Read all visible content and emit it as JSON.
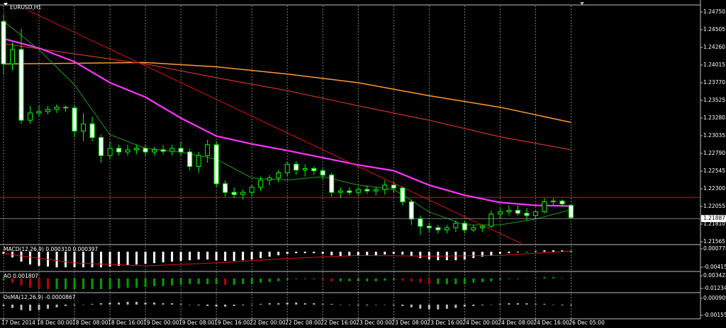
{
  "chart_data": [
    {
      "type": "candlestick",
      "title": "EURUSD,H1",
      "xlim": [
        -0.4,
        78.6
      ],
      "xticks": [
        {
          "value": 0,
          "label": "17 Dec 2014"
        },
        {
          "value": 4,
          "label": "18 Dec 00:00"
        },
        {
          "value": 8,
          "label": "18 Dec 08:00"
        },
        {
          "value": 12,
          "label": "18 Dec 16:00"
        },
        {
          "value": 16,
          "label": "19 Dec 00:00"
        },
        {
          "value": 20,
          "label": "19 Dec 08:00"
        },
        {
          "value": 24,
          "label": "19 Dec 16:00"
        },
        {
          "value": 28,
          "label": "22 Dec 00:00"
        },
        {
          "value": 32,
          "label": "22 Dec 08:00"
        },
        {
          "value": 36,
          "label": "22 Dec 16:00"
        },
        {
          "value": 40,
          "label": "23 Dec 00:00"
        },
        {
          "value": 44,
          "label": "23 Dec 08:00"
        },
        {
          "value": 48,
          "label": "23 Dec 16:00"
        },
        {
          "value": 52,
          "label": "24 Dec 00:00"
        },
        {
          "value": 56,
          "label": "24 Dec 08:00"
        },
        {
          "value": 60,
          "label": "24 Dec 16:00"
        },
        {
          "value": 64,
          "label": "26 Dec 05:00"
        }
      ],
      "grid": true,
      "ylim": [
        1.21536,
        1.24838
      ],
      "yticks": [
        {
          "value": 1.2475,
          "label": "1.24750"
        },
        1.24505,
        {
          "value": 1.2426,
          "label": "1.24260"
        },
        1.24015,
        {
          "value": 1.2377,
          "label": "1.23770"
        },
        1.23525,
        {
          "value": 1.2328,
          "label": "1.23280"
        },
        1.23035,
        {
          "value": 1.2279,
          "label": "1.22790"
        },
        1.22545,
        {
          "value": 1.223,
          "label": "1.22300"
        },
        1.22055,
        {
          "value": 1.2181,
          "label": "1.21810"
        },
        1.21565
      ],
      "open": [
        1.2462,
        1.2403,
        1.2423,
        1.2325,
        1.2335,
        1.2337,
        1.234,
        1.2343,
        1.2342,
        1.231,
        1.232,
        1.2301,
        1.2276,
        1.2286,
        1.2281,
        1.2284,
        1.2286,
        1.2281,
        1.2284,
        1.2282,
        1.2286,
        1.2281,
        1.2261,
        1.2276,
        1.2291,
        1.2237,
        1.2225,
        1.2222,
        1.2225,
        1.2232,
        1.2242,
        1.2245,
        1.2252,
        1.2264,
        1.2256,
        1.2258,
        1.2255,
        1.2249,
        1.2225,
        1.2227,
        1.2225,
        1.2229,
        1.2227,
        1.2229,
        1.2235,
        1.2231,
        1.2212,
        1.2188,
        1.2178,
        1.2176,
        1.2173,
        1.2176,
        1.2182,
        1.2173,
        1.2176,
        1.2178,
        1.2195,
        1.2198,
        1.22,
        1.2196,
        1.2193,
        1.2198,
        1.2212,
        1.2213,
        1.2207
      ],
      "high": [
        1.2472,
        1.2433,
        1.2452,
        1.2345,
        1.2345,
        1.2345,
        1.2347,
        1.2345,
        1.2345,
        1.2335,
        1.233,
        1.2305,
        1.2296,
        1.2291,
        1.2291,
        1.2291,
        1.2291,
        1.2288,
        1.2291,
        1.2291,
        1.2296,
        1.2286,
        1.2281,
        1.2298,
        1.2296,
        1.2242,
        1.2232,
        1.2229,
        1.2235,
        1.2247,
        1.2249,
        1.2256,
        1.2268,
        1.2268,
        1.2264,
        1.2261,
        1.2258,
        1.2252,
        1.2232,
        1.2232,
        1.2232,
        1.2235,
        1.2233,
        1.2242,
        1.2239,
        1.2233,
        1.2215,
        1.2193,
        1.2183,
        1.218,
        1.218,
        1.2186,
        1.2186,
        1.218,
        1.218,
        1.22,
        1.2203,
        1.2207,
        1.2207,
        1.2203,
        1.22,
        1.2217,
        1.2217,
        1.2215,
        1.2209
      ],
      "low": [
        1.2389,
        1.2394,
        1.232,
        1.232,
        1.233,
        1.2333,
        1.2335,
        1.2337,
        1.2301,
        1.2296,
        1.2296,
        1.2266,
        1.2271,
        1.2276,
        1.2276,
        1.2278,
        1.2276,
        1.2276,
        1.2278,
        1.2276,
        1.2276,
        1.2256,
        1.2252,
        1.2266,
        1.2232,
        1.2219,
        1.2217,
        1.2215,
        1.2219,
        1.2227,
        1.2235,
        1.2239,
        1.2247,
        1.2249,
        1.2247,
        1.2249,
        1.2242,
        1.2219,
        1.2217,
        1.2221,
        1.2221,
        1.2223,
        1.2221,
        1.2222,
        1.2225,
        1.2207,
        1.218,
        1.2166,
        1.217,
        1.2168,
        1.2168,
        1.217,
        1.2168,
        1.217,
        1.217,
        1.2176,
        1.2188,
        1.2193,
        1.2193,
        1.2186,
        1.2188,
        1.2196,
        1.2207,
        1.2205,
        1.2188
      ],
      "close": [
        1.2403,
        1.2423,
        1.2325,
        1.2335,
        1.2337,
        1.234,
        1.2343,
        1.2342,
        1.231,
        1.232,
        1.2301,
        1.2276,
        1.2286,
        1.2281,
        1.2284,
        1.2286,
        1.2281,
        1.2284,
        1.2282,
        1.2286,
        1.2281,
        1.2261,
        1.2276,
        1.2291,
        1.2237,
        1.2225,
        1.2222,
        1.2225,
        1.2232,
        1.2242,
        1.2245,
        1.2252,
        1.2264,
        1.2256,
        1.2258,
        1.2255,
        1.2249,
        1.2225,
        1.2227,
        1.2225,
        1.2229,
        1.2227,
        1.2229,
        1.2235,
        1.2231,
        1.2212,
        1.2188,
        1.2178,
        1.2176,
        1.2173,
        1.2176,
        1.2182,
        1.2173,
        1.2176,
        1.2178,
        1.2195,
        1.2198,
        1.22,
        1.2196,
        1.2193,
        1.2198,
        1.2212,
        1.2213,
        1.2209,
        1.219
      ],
      "wick_color": "#00ff00",
      "bull_color": "#000000",
      "bear_color": "#ffffff",
      "lines": [
        {
          "color": "#ff9933",
          "width": 1.5,
          "x": [
            0,
            16,
            24,
            32,
            40,
            48,
            56,
            64
          ],
          "values": [
            1.2403,
            1.2405,
            1.2399,
            1.2389,
            1.2377,
            1.2359,
            1.2343,
            1.2322
          ]
        },
        {
          "color": "#cc3322",
          "width": 1.2,
          "x": [
            0,
            16,
            24,
            32,
            40,
            48,
            56,
            64
          ],
          "values": [
            1.2431,
            1.2403,
            1.2384,
            1.2366,
            1.2345,
            1.2325,
            1.2302,
            1.2284
          ]
        },
        {
          "color": "#ff33ff",
          "width": 2.2,
          "x": [
            0,
            4,
            8,
            12,
            16,
            20,
            24,
            28,
            32,
            36,
            40,
            44,
            48,
            52,
            56,
            60,
            64
          ],
          "values": [
            1.2438,
            1.2425,
            1.2406,
            1.2377,
            1.2357,
            1.2328,
            1.2303,
            1.2292,
            1.2283,
            1.2273,
            1.2263,
            1.2255,
            1.2235,
            1.2221,
            1.2211,
            1.2207,
            1.2206
          ]
        },
        {
          "color": "#1f9a1f",
          "width": 1,
          "x": [
            0,
            4,
            8,
            12,
            16,
            20,
            24,
            28,
            32,
            36,
            40,
            44,
            48,
            52,
            56,
            60,
            64
          ],
          "values": [
            1.2462,
            1.2423,
            1.2374,
            1.2305,
            1.2286,
            1.2281,
            1.2271,
            1.2245,
            1.2242,
            1.2247,
            1.2235,
            1.2229,
            1.2198,
            1.218,
            1.218,
            1.2188,
            1.2201
          ]
        },
        {
          "color": "#dd1111",
          "width": 1,
          "x": [
            2.8,
            58.4
          ],
          "values": [
            1.2477,
            1.2154
          ]
        }
      ],
      "level": 1.2218,
      "level_color": "#dd1111",
      "last_price": 1.21887
    },
    {
      "type": "macd",
      "title": "MACD(12,26,9) 0.000310 0.000397",
      "ylim": [
        -0.0051,
        0.00173
      ],
      "yticks": [
        0.000778,
        -0.004155
      ],
      "color": "#ffffff",
      "values": [
        -0.00057,
        -0.00152,
        -0.00266,
        -0.00342,
        -0.0038,
        -0.00399,
        -0.00418,
        -0.00418,
        -0.00418,
        -0.00418,
        -0.00418,
        -0.00418,
        -0.00399,
        -0.0038,
        -0.00361,
        -0.00342,
        -0.00323,
        -0.00304,
        -0.00285,
        -0.00266,
        -0.00247,
        -0.00228,
        -0.00209,
        -0.00209,
        -0.00228,
        -0.00247,
        -0.00247,
        -0.00228,
        -0.00209,
        -0.00171,
        -0.00133,
        -0.00095,
        -0.00057,
        -0.00038,
        -0.00038,
        -0.00038,
        -0.00057,
        -0.00095,
        -0.00114,
        -0.00114,
        -0.00114,
        -0.00095,
        -0.00095,
        -0.00076,
        -0.00057,
        -0.00076,
        -0.00114,
        -0.00171,
        -0.00209,
        -0.00228,
        -0.00228,
        -0.00228,
        -0.00209,
        -0.00171,
        -0.00133,
        -0.00095,
        -0.00057,
        -0.00038,
        -0.00019,
        0,
        0.00019,
        0.00038,
        0.00038,
        0.00038,
        0.00019
      ],
      "signal": {
        "color": "#dd1111",
        "x": [
          0,
          8,
          16,
          24,
          32,
          40,
          48,
          56,
          64
        ],
        "values": [
          -0.0005,
          -0.003,
          -0.0038,
          -0.003,
          -0.0018,
          -0.001,
          -0.0012,
          -0.001,
          0.0002
        ]
      }
    },
    {
      "type": "histogram",
      "title": "AO 0.001807",
      "ylim": [
        -0.0167,
        0.0078
      ],
      "yticks": [
        0.003422,
        -0.012344
      ],
      "up_color": "#00a000",
      "down_color": "#c00000",
      "values": [
        -0.00175,
        -0.00526,
        -0.00876,
        -0.01139,
        -0.01226,
        -0.01314,
        -0.01314,
        -0.01314,
        -0.01314,
        -0.01314,
        -0.01314,
        -0.01314,
        -0.01314,
        -0.01226,
        -0.01139,
        -0.01139,
        -0.01051,
        -0.00964,
        -0.00964,
        -0.00876,
        -0.00788,
        -0.00701,
        -0.00701,
        -0.00701,
        -0.00701,
        -0.00788,
        -0.00788,
        -0.00701,
        -0.00701,
        -0.00526,
        -0.00438,
        -0.0035,
        -0.00175,
        -0.00088,
        -0.00088,
        -0.00088,
        -0.00175,
        -0.0035,
        -0.0035,
        -0.0035,
        -0.0035,
        -0.0035,
        -0.0035,
        -0.00263,
        -0.00175,
        -0.00263,
        -0.0035,
        -0.00526,
        -0.00701,
        -0.00701,
        -0.00701,
        -0.00701,
        -0.00701,
        -0.00526,
        -0.00438,
        -0.0035,
        -0.00175,
        -0.00088,
        -0.00088,
        0,
        0.00088,
        0.00175,
        0.00175,
        0.00088,
        0.00088
      ]
    },
    {
      "type": "histogram",
      "title": "OsMA(12,26,9) -0.0000867",
      "ylim": [
        -0.00207,
        0.00163
      ],
      "yticks": [
        0.000909,
        -0.001553
      ],
      "color": "#bbbbbb",
      "values": [
        -0.0002,
        -0.0005,
        -0.0008,
        -0.0009,
        -0.0008,
        -0.0006,
        -0.0004,
        -0.0002,
        -0.0001,
        0,
        0.0001,
        0.0002,
        0.0003,
        0.0003,
        0.0004,
        0.0004,
        0.0003,
        0.0003,
        0.0002,
        0.0002,
        0.0001,
        0,
        -0.0001,
        -0.0002,
        -0.0003,
        -0.0003,
        -0.0002,
        -0.0001,
        0,
        0.0001,
        0.0002,
        0.0002,
        0.0003,
        0.0003,
        0.0002,
        0.0002,
        0.0001,
        0.0001,
        0,
        0,
        -0.0001,
        -0.0001,
        0,
        0,
        -0.0001,
        -0.0002,
        -0.0004,
        -0.0006,
        -0.0007,
        -0.0007,
        -0.0006,
        -0.0005,
        -0.0003,
        -0.0002,
        -0.0001,
        0,
        0.0001,
        0.0002,
        0.0002,
        0.0002,
        0.0001,
        0.0001,
        0,
        -0.0001,
        -0.0001
      ]
    }
  ]
}
